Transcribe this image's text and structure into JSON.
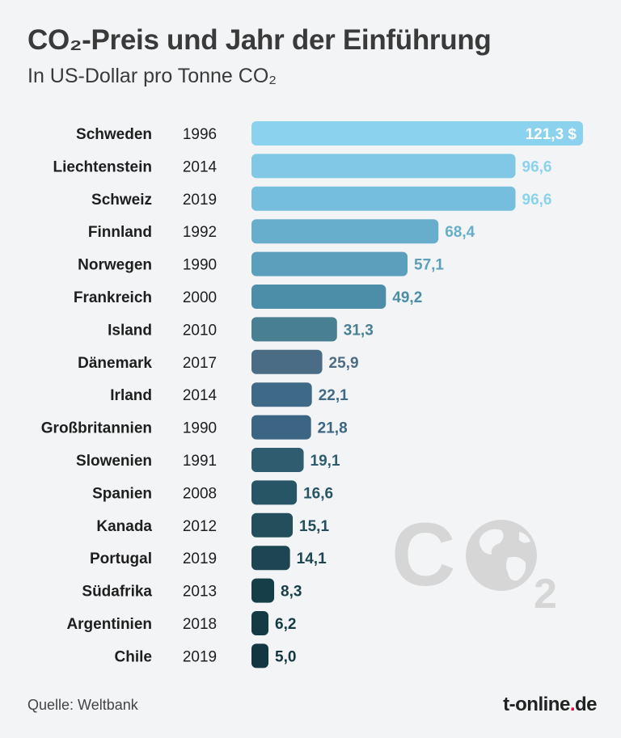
{
  "header": {
    "title": "CO₂-Preis und Jahr der Einführung",
    "subtitle": "In US-Dollar pro Tonne CO₂"
  },
  "footer": {
    "source": "Quelle: Weltbank",
    "brand_main": "t-online",
    "brand_dot": ".",
    "brand_tld": "de"
  },
  "watermark": {
    "letters": "C",
    "subscript": "2",
    "icon": "globe-icon"
  },
  "colors": {
    "background": "#f2f4f5",
    "bar_top": "#8bd2ee",
    "bar_bottom": "#123a44",
    "watermark": "#d6d6d6"
  },
  "chart_data": {
    "type": "bar",
    "orientation": "horizontal",
    "categories": [
      "Schweden",
      "Liechtenstein",
      "Schweiz",
      "Finnland",
      "Norwegen",
      "Frankreich",
      "Island",
      "Dänemark",
      "Irland",
      "Großbritannien",
      "Slowenien",
      "Spanien",
      "Kanada",
      "Portugal",
      "Südafrika",
      "Argentinien",
      "Chile"
    ],
    "years": [
      "1996",
      "2014",
      "2019",
      "1992",
      "1990",
      "2000",
      "2010",
      "2017",
      "2014",
      "1990",
      "1991",
      "2008",
      "2012",
      "2019",
      "2013",
      "2018",
      "2019"
    ],
    "values": [
      121.3,
      96.6,
      96.6,
      68.4,
      57.1,
      49.2,
      31.3,
      25.9,
      22.1,
      21.8,
      19.1,
      16.6,
      15.1,
      14.1,
      8.3,
      6.2,
      5.0
    ],
    "value_labels": [
      "121,3 $",
      "96,6",
      "96,6",
      "68,4",
      "57,1",
      "49,2",
      "31,3",
      "25,9",
      "22,1",
      "21,8",
      "19,1",
      "16,6",
      "15,1",
      "14,1",
      "8,3",
      "6,2",
      "5,0"
    ],
    "bar_colors": [
      "#8bd2ee",
      "#80c8e6",
      "#75bedd",
      "#67aecc",
      "#5b9fbd",
      "#4c8ea8",
      "#487f92",
      "#4b6c85",
      "#3f6a87",
      "#3b6583",
      "#2f5c6e",
      "#285566",
      "#234e5b",
      "#1d4652",
      "#163e48",
      "#143a44",
      "#123741"
    ],
    "label_colors": [
      "#ffffff",
      "#8bd2ee",
      "#8bd2ee",
      "#67aecc",
      "#5b9fbd",
      "#4c8ea8",
      "#487f92",
      "#4b6c85",
      "#3f6a87",
      "#3b6583",
      "#2f5c6e",
      "#285566",
      "#234e5b",
      "#1d4652",
      "#163e48",
      "#143a44",
      "#123741"
    ],
    "xlim": [
      0,
      121.3
    ],
    "grid": false,
    "legend": "none"
  }
}
